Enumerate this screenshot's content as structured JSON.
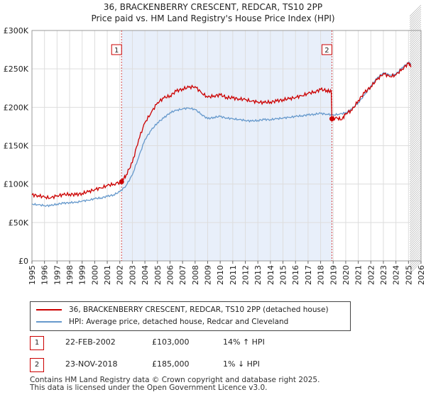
{
  "title_line1": "36, BRACKENBERRY CRESCENT, REDCAR, TS10 2PP",
  "title_line2": "Price paid vs. HM Land Registry's House Price Index (HPI)",
  "colors": {
    "price_paid": "#cc0000",
    "hpi": "#6699cc",
    "shade": "#e8effa",
    "marker_box": "#cc0000",
    "grid": "#dddddd"
  },
  "legend": {
    "price_paid_label": "36, BRACKENBERRY CRESCENT, REDCAR, TS10 2PP (detached house)",
    "hpi_label": "HPI: Average price, detached house, Redcar and Cleveland"
  },
  "transactions": [
    {
      "num": "1",
      "date": "22-FEB-2002",
      "price": "£103,000",
      "hpi": "14% ↑ HPI"
    },
    {
      "num": "2",
      "date": "23-NOV-2018",
      "price": "£185,000",
      "hpi": "1% ↓ HPI"
    }
  ],
  "footer_line1": "Contains HM Land Registry data © Crown copyright and database right 2025.",
  "footer_line2": "This data is licensed under the Open Government Licence v3.0.",
  "chart_data": {
    "type": "line",
    "title": "36, BRACKENBERRY CRESCENT, REDCAR, TS10 2PP — Price paid vs. HM Land Registry's House Price Index (HPI)",
    "xlim": [
      1995,
      2026
    ],
    "ylim": [
      0,
      300000
    ],
    "x_ticks": [
      "1995",
      "1996",
      "1997",
      "1998",
      "1999",
      "2000",
      "2001",
      "2002",
      "2003",
      "2004",
      "2005",
      "2006",
      "2007",
      "2008",
      "2009",
      "2010",
      "2011",
      "2012",
      "2013",
      "2014",
      "2015",
      "2016",
      "2017",
      "2018",
      "2019",
      "2020",
      "2021",
      "2022",
      "2023",
      "2024",
      "2025",
      "2026"
    ],
    "y_ticks": [
      {
        "value": 0,
        "label": "£0"
      },
      {
        "value": 50000,
        "label": "£50K"
      },
      {
        "value": 100000,
        "label": "£100K"
      },
      {
        "value": 150000,
        "label": "£150K"
      },
      {
        "value": 200000,
        "label": "£200K"
      },
      {
        "value": 250000,
        "label": "£250K"
      },
      {
        "value": 300000,
        "label": "£300K"
      }
    ],
    "grid": true,
    "shaded_range": [
      2002.14,
      2018.9
    ],
    "future_hatch_from": 2025.1,
    "markers": [
      {
        "label": "1",
        "x": 2002.14,
        "y": 103000
      },
      {
        "label": "2",
        "x": 2018.9,
        "y": 185000
      }
    ],
    "series": [
      {
        "name": "36, BRACKENBERRY CRESCENT, REDCAR, TS10 2PP (detached house)",
        "x": [
          1995,
          1995.5,
          1996,
          1996.5,
          1997,
          1997.5,
          1998,
          1998.5,
          1999,
          1999.5,
          2000,
          2000.5,
          2001,
          2001.5,
          2002.14,
          2002.5,
          2003,
          2003.5,
          2004,
          2004.5,
          2005,
          2005.5,
          2006,
          2006.5,
          2007,
          2007.5,
          2008,
          2008.5,
          2009,
          2009.5,
          2010,
          2010.5,
          2011,
          2011.5,
          2012,
          2012.5,
          2013,
          2013.5,
          2014,
          2014.5,
          2015,
          2015.5,
          2016,
          2016.5,
          2017,
          2017.5,
          2018,
          2018.5,
          2018.85,
          2018.9,
          2019.3,
          2019.7,
          2020,
          2020.5,
          2021,
          2021.5,
          2022,
          2022.5,
          2023,
          2023.5,
          2024,
          2024.5,
          2025,
          2025.2
        ],
        "y": [
          86000,
          85000,
          83000,
          82000,
          85000,
          86000,
          87000,
          86000,
          88000,
          90000,
          93000,
          95000,
          98000,
          100000,
          103000,
          112000,
          128000,
          158000,
          180000,
          193000,
          206000,
          212000,
          215000,
          221000,
          224000,
          226000,
          227000,
          219000,
          213000,
          215000,
          216000,
          213000,
          212000,
          211000,
          210000,
          208000,
          207000,
          206000,
          207000,
          208000,
          210000,
          211000,
          213000,
          215000,
          218000,
          220000,
          223000,
          222000,
          220000,
          185000,
          186000,
          184000,
          192000,
          196000,
          209000,
          219000,
          227000,
          236000,
          244000,
          240000,
          242000,
          250000,
          257000,
          254000
        ]
      },
      {
        "name": "HPI: Average price, detached house, Redcar and Cleveland",
        "x": [
          1995,
          1995.5,
          1996,
          1996.5,
          1997,
          1997.5,
          1998,
          1998.5,
          1999,
          1999.5,
          2000,
          2000.5,
          2001,
          2001.5,
          2002,
          2002.5,
          2003,
          2003.5,
          2004,
          2004.5,
          2005,
          2005.5,
          2006,
          2006.5,
          2007,
          2007.5,
          2008,
          2008.5,
          2009,
          2009.5,
          2010,
          2010.5,
          2011,
          2011.5,
          2012,
          2012.5,
          2013,
          2013.5,
          2014,
          2014.5,
          2015,
          2015.5,
          2016,
          2016.5,
          2017,
          2017.5,
          2018,
          2018.5,
          2019,
          2019.5,
          2020,
          2020.5,
          2021,
          2021.5,
          2022,
          2022.5,
          2023,
          2023.5,
          2024,
          2024.5,
          2025,
          2025.2
        ],
        "y": [
          74000,
          73000,
          72000,
          72000,
          74000,
          75000,
          76000,
          76000,
          78000,
          79000,
          81000,
          82000,
          84000,
          86000,
          90000,
          98000,
          112000,
          135000,
          158000,
          170000,
          180000,
          186000,
          193000,
          196000,
          198000,
          199000,
          197000,
          191000,
          185000,
          187000,
          188000,
          186000,
          185000,
          184000,
          183000,
          182000,
          183000,
          184000,
          184000,
          185000,
          186000,
          187000,
          188000,
          189000,
          190000,
          191000,
          192000,
          191000,
          190000,
          191000,
          193000,
          198000,
          206000,
          216000,
          228000,
          238000,
          245000,
          242000,
          243000,
          252000,
          258000,
          256000
        ]
      }
    ]
  }
}
